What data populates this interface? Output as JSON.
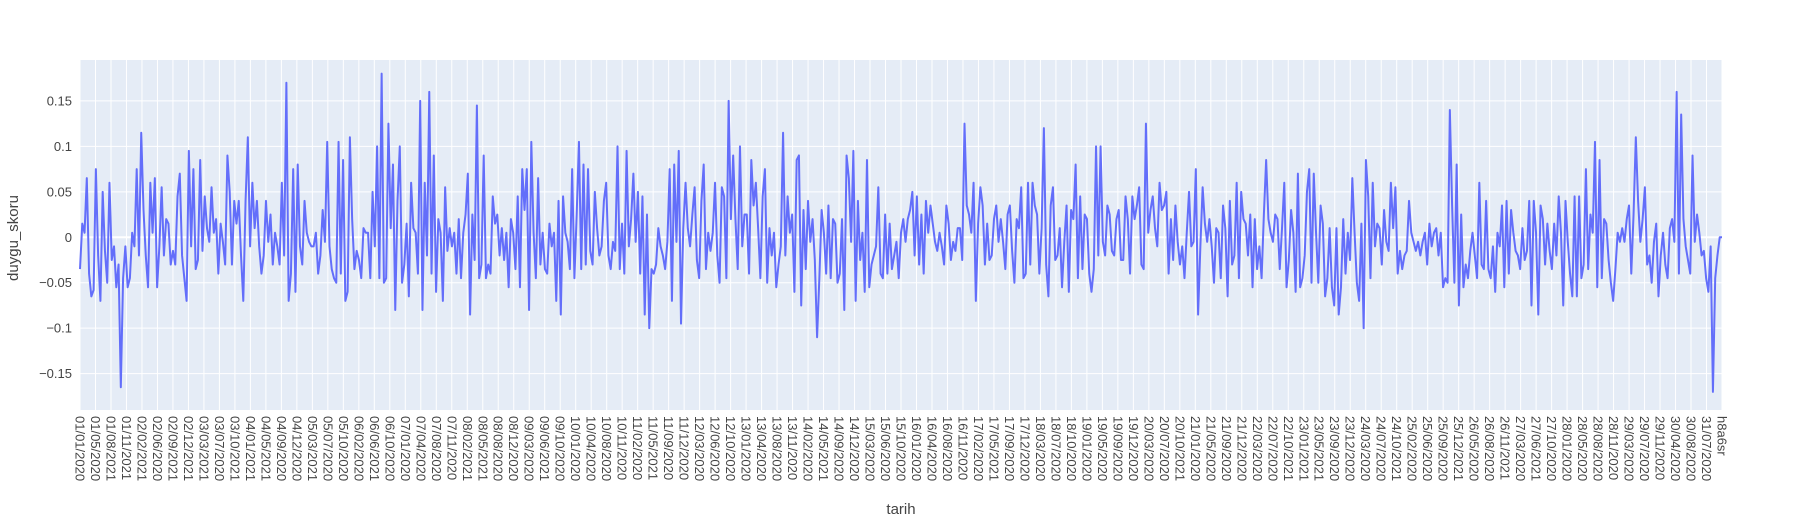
{
  "chart_data": {
    "type": "line",
    "xlabel": "tarih",
    "ylabel": "duygu_skoru",
    "line_color": "#636efa",
    "plot_bg": "#e5ecf6",
    "grid": true,
    "ylim": [
      -0.19,
      0.195
    ],
    "y_ticks": [
      -0.15,
      -0.1,
      -0.05,
      0,
      0.05,
      0.1,
      0.15
    ],
    "y_tick_labels": [
      "−0.15",
      "−0.1",
      "−0.05",
      "0",
      "0.05",
      "0.1",
      "0.15"
    ],
    "x_tick_labels": [
      "01/01/2020",
      "01/05/2020",
      "01/08/2021",
      "01/11/2021",
      "02/02/2021",
      "02/06/2020",
      "02/09/2021",
      "02/12/2021",
      "03/03/2021",
      "03/07/2020",
      "03/10/2021",
      "04/01/2021",
      "04/05/2021",
      "04/09/2020",
      "04/12/2020",
      "05/03/2021",
      "05/07/2020",
      "05/10/2020",
      "06/02/2020",
      "06/06/2021",
      "06/10/2020",
      "07/01/2020",
      "07/04/2020",
      "07/08/2020",
      "07/11/2020",
      "08/02/2021",
      "08/05/2021",
      "08/08/2020",
      "08/12/2020",
      "09/03/2020",
      "09/06/2021",
      "09/10/2020",
      "10/01/2020",
      "10/04/2020",
      "10/08/2020",
      "10/11/2020",
      "11/02/2020",
      "11/05/2021",
      "11/09/2020",
      "11/12/2020",
      "12/03/2020",
      "12/06/2020",
      "12/10/2020",
      "13/01/2020",
      "13/04/2020",
      "13/08/2020",
      "13/11/2020",
      "14/02/2020",
      "14/05/2021",
      "14/09/2020",
      "14/12/2020",
      "15/03/2020",
      "15/06/2020",
      "15/10/2020",
      "16/01/2020",
      "16/04/2020",
      "16/08/2020",
      "16/11/2020",
      "17/02/2020",
      "17/05/2021",
      "17/09/2020",
      "17/12/2020",
      "18/03/2020",
      "18/07/2020",
      "18/10/2020",
      "19/01/2020",
      "19/05/2020",
      "19/09/2020",
      "19/12/2020",
      "20/03/2020",
      "20/07/2020",
      "20/10/2021",
      "21/01/2020",
      "21/05/2020",
      "21/09/2020",
      "21/12/2020",
      "22/03/2020",
      "22/07/2020",
      "22/10/2021",
      "23/01/2021",
      "23/05/2021",
      "23/09/2020",
      "23/12/2020",
      "24/03/2020",
      "24/07/2020",
      "24/10/2021",
      "25/02/2020",
      "25/06/2020",
      "25/09/2020",
      "25/12/2021",
      "26/05/2020",
      "26/08/2020",
      "26/11/2021",
      "27/03/2020",
      "27/06/2021",
      "27/10/2020",
      "28/01/2020",
      "28/05/2020",
      "28/08/2020",
      "28/11/2020",
      "29/03/2020",
      "29/07/2020",
      "29/11/2020",
      "30/04/2020",
      "30/08/2020",
      "31/07/2020",
      "h8a6sr"
    ],
    "values": [
      -0.035,
      0.015,
      0.005,
      0.065,
      -0.04,
      -0.065,
      -0.058,
      0.075,
      -0.02,
      -0.07,
      0.05,
      -0.015,
      -0.05,
      0.06,
      -0.025,
      -0.01,
      -0.055,
      -0.03,
      -0.165,
      -0.045,
      -0.01,
      -0.055,
      -0.045,
      0.005,
      -0.01,
      0.075,
      -0.02,
      0.115,
      0.03,
      -0.02,
      -0.055,
      0.06,
      0.005,
      0.065,
      -0.055,
      -0.01,
      0.055,
      -0.02,
      0.02,
      0.015,
      -0.03,
      -0.015,
      -0.03,
      0.045,
      0.07,
      -0.02,
      -0.045,
      -0.07,
      0.095,
      -0.01,
      0.075,
      -0.035,
      -0.025,
      0.085,
      -0.015,
      0.045,
      0.01,
      -0.005,
      0.055,
      0.005,
      0.02,
      -0.04,
      0.015,
      -0.005,
      -0.03,
      0.09,
      0.05,
      -0.03,
      0.04,
      0.015,
      0.04,
      -0.02,
      -0.07,
      0.04,
      0.11,
      -0.01,
      0.06,
      0.01,
      0.04,
      -0.01,
      -0.04,
      -0.02,
      0.04,
      -0.005,
      0.025,
      -0.03,
      0.005,
      -0.01,
      -0.03,
      0.06,
      -0.02,
      0.17,
      -0.07,
      -0.04,
      0.075,
      -0.06,
      0.08,
      -0.01,
      -0.03,
      0.04,
      0.005,
      -0.005,
      -0.01,
      -0.01,
      0.005,
      -0.04,
      -0.02,
      0.03,
      -0.005,
      0.105,
      -0.01,
      -0.035,
      -0.045,
      -0.05,
      0.105,
      -0.04,
      0.085,
      -0.07,
      -0.06,
      0.11,
      0.02,
      -0.035,
      -0.015,
      -0.025,
      -0.045,
      0.01,
      0.005,
      0.005,
      -0.045,
      0.05,
      -0.01,
      0.1,
      -0.045,
      0.18,
      -0.05,
      -0.045,
      0.125,
      0.01,
      0.08,
      -0.08,
      0.04,
      0.1,
      -0.05,
      -0.03,
      0.015,
      -0.065,
      0.06,
      0.01,
      0.005,
      -0.04,
      0.15,
      -0.08,
      0.06,
      -0.02,
      0.16,
      -0.04,
      0.09,
      -0.06,
      0.02,
      0.005,
      -0.07,
      0.055,
      -0.015,
      0.01,
      -0.01,
      0.005,
      -0.04,
      0.02,
      -0.045,
      0.005,
      0.025,
      0.07,
      -0.085,
      0.025,
      -0.025,
      0.145,
      -0.045,
      -0.03,
      0.09,
      -0.045,
      -0.03,
      -0.04,
      0.045,
      0.015,
      0.025,
      -0.02,
      0.01,
      -0.025,
      0.005,
      -0.055,
      0.02,
      0.005,
      -0.035,
      0.045,
      -0.055,
      0.075,
      0.03,
      0.075,
      -0.08,
      0.105,
      0.005,
      -0.045,
      0.065,
      -0.03,
      0.005,
      -0.035,
      -0.04,
      0.015,
      -0.01,
      0.005,
      -0.07,
      0.04,
      -0.085,
      0.045,
      0.005,
      -0.005,
      -0.035,
      0.075,
      -0.045,
      0.025,
      0.105,
      -0.035,
      0.08,
      -0.03,
      0.075,
      -0.015,
      -0.03,
      0.05,
      0.01,
      -0.02,
      -0.01,
      0.04,
      0.06,
      -0.02,
      -0.035,
      -0.005,
      -0.015,
      0.1,
      -0.035,
      0.015,
      -0.04,
      0.095,
      -0.01,
      0.02,
      0.07,
      -0.005,
      0.05,
      -0.04,
      0.045,
      -0.085,
      0.025,
      -0.1,
      -0.035,
      -0.04,
      -0.03,
      0.01,
      -0.01,
      -0.02,
      -0.035,
      -0.005,
      0.075,
      -0.07,
      0.08,
      -0.005,
      0.095,
      -0.095,
      0.01,
      0.06,
      0.01,
      -0.01,
      0.025,
      0.055,
      -0.025,
      -0.045,
      0.04,
      0.08,
      -0.035,
      0.005,
      -0.015,
      0.005,
      0.06,
      -0.02,
      -0.05,
      0.055,
      0.045,
      -0.045,
      0.15,
      0.02,
      0.09,
      0.02,
      -0.035,
      0.1,
      -0.01,
      0.025,
      0.025,
      -0.04,
      0.085,
      0.035,
      0.06,
      0.01,
      -0.045,
      0.045,
      0.075,
      -0.05,
      0.01,
      -0.02,
      0.005,
      -0.055,
      -0.03,
      -0.01,
      0.115,
      -0.02,
      0.045,
      0.005,
      0.025,
      -0.06,
      0.085,
      0.09,
      -0.075,
      0.03,
      -0.035,
      0.04,
      -0.005,
      0.02,
      -0.025,
      -0.11,
      -0.045,
      0.03,
      0.005,
      -0.04,
      0.035,
      -0.045,
      0.02,
      0.015,
      -0.05,
      -0.04,
      0.02,
      -0.08,
      0.09,
      0.065,
      -0.005,
      0.095,
      -0.07,
      0.04,
      -0.025,
      0.005,
      -0.06,
      0.085,
      -0.055,
      -0.03,
      -0.02,
      -0.01,
      0.055,
      -0.04,
      -0.045,
      0.025,
      -0.04,
      0.015,
      -0.035,
      -0.02,
      -0.005,
      -0.045,
      0.005,
      0.02,
      -0.005,
      0.02,
      0.03,
      0.05,
      -0.02,
      0.045,
      -0.03,
      0.025,
      -0.04,
      0.04,
      0.005,
      0.035,
      0.015,
      -0.005,
      -0.015,
      0.005,
      -0.01,
      -0.03,
      0.035,
      0.015,
      -0.025,
      -0.005,
      -0.015,
      0.01,
      0.01,
      -0.025,
      0.125,
      0.035,
      0.025,
      0.005,
      0.06,
      -0.07,
      0.015,
      0.055,
      0.035,
      -0.03,
      0.015,
      -0.025,
      -0.02,
      0.02,
      0.035,
      -0.005,
      0.02,
      -0.005,
      -0.035,
      0.025,
      0.035,
      -0.015,
      -0.05,
      0.02,
      0.01,
      0.055,
      -0.045,
      -0.04,
      0.06,
      -0.03,
      0.06,
      0.035,
      0.025,
      -0.04,
      0.01,
      0.12,
      -0.03,
      -0.065,
      0.035,
      0.055,
      -0.025,
      -0.02,
      0.01,
      -0.055,
      -0.005,
      0.035,
      -0.06,
      0.03,
      0.02,
      0.08,
      -0.045,
      0.045,
      -0.035,
      0.025,
      0.02,
      -0.04,
      -0.06,
      -0.035,
      0.1,
      -0.02,
      0.1,
      -0.005,
      -0.02,
      0.035,
      0.025,
      -0.015,
      -0.02,
      0.02,
      0.03,
      -0.025,
      -0.025,
      0.045,
      0.02,
      -0.04,
      0.045,
      0.02,
      0.035,
      0.055,
      -0.03,
      -0.035,
      0.125,
      0.005,
      0.03,
      0.045,
      0.01,
      -0.01,
      0.06,
      0.03,
      0.035,
      0.05,
      -0.04,
      0.02,
      -0.025,
      0.035,
      -0.005,
      -0.03,
      -0.01,
      -0.045,
      0.005,
      0.05,
      -0.01,
      -0.005,
      0.075,
      -0.085,
      -0.01,
      0.055,
      0.015,
      -0.005,
      0.02,
      -0.01,
      -0.05,
      0.01,
      0.005,
      -0.045,
      0.035,
      0.01,
      -0.065,
      0.04,
      -0.03,
      -0.02,
      0.06,
      -0.045,
      0.05,
      0.02,
      0.015,
      -0.02,
      0.025,
      -0.055,
      0.02,
      -0.035,
      -0.01,
      -0.045,
      0.025,
      0.085,
      0.02,
      0.005,
      -0.005,
      0.025,
      0.02,
      -0.035,
      0.01,
      0.06,
      -0.055,
      -0.025,
      0.03,
      0.005,
      -0.06,
      0.07,
      -0.055,
      -0.045,
      -0.02,
      0.05,
      0.075,
      -0.05,
      0.07,
      0.005,
      -0.05,
      0.035,
      0.015,
      -0.065,
      -0.045,
      0.01,
      -0.055,
      -0.075,
      0.01,
      -0.085,
      -0.055,
      0.02,
      -0.04,
      0.005,
      -0.025,
      0.065,
      0.005,
      -0.05,
      -0.07,
      0.015,
      -0.1,
      0.085,
      0.045,
      -0.045,
      0.06,
      -0.01,
      0.015,
      0.01,
      -0.03,
      0.03,
      -0.005,
      -0.015,
      0.06,
      0.01,
      0.055,
      -0.04,
      -0.015,
      -0.035,
      -0.02,
      -0.015,
      0.04,
      0.005,
      -0.005,
      -0.015,
      -0.005,
      -0.02,
      -0.005,
      0.005,
      -0.03,
      0.015,
      -0.01,
      0.005,
      0.01,
      -0.02,
      0.005,
      -0.055,
      -0.045,
      -0.05,
      0.14,
      0.035,
      -0.05,
      0.08,
      -0.075,
      0.025,
      -0.055,
      -0.03,
      -0.045,
      -0.015,
      0.005,
      -0.02,
      -0.045,
      0.06,
      -0.03,
      -0.035,
      0.04,
      -0.035,
      -0.045,
      -0.01,
      -0.06,
      0.005,
      -0.01,
      0.035,
      -0.055,
      0.04,
      -0.04,
      0.03,
      0.005,
      -0.015,
      -0.02,
      -0.035,
      0.01,
      -0.025,
      -0.015,
      0.04,
      -0.075,
      0.04,
      0.005,
      -0.085,
      0.035,
      0.02,
      -0.03,
      0.015,
      -0.015,
      -0.035,
      0.015,
      -0.02,
      0.045,
      0.005,
      -0.075,
      0.04,
      -0.005,
      -0.04,
      -0.065,
      0.045,
      -0.065,
      0.045,
      -0.045,
      -0.03,
      0.075,
      -0.035,
      0.025,
      0.005,
      0.105,
      -0.055,
      0.085,
      -0.045,
      0.02,
      0.015,
      -0.025,
      -0.05,
      -0.07,
      -0.035,
      0.005,
      -0.005,
      0.01,
      -0.005,
      0.02,
      0.035,
      -0.04,
      0.025,
      0.11,
      0.04,
      -0.005,
      0.02,
      0.055,
      -0.03,
      -0.02,
      -0.05,
      -0.005,
      0.015,
      -0.065,
      -0.02,
      0.005,
      -0.03,
      -0.045,
      0.01,
      0.02,
      -0.005,
      0.16,
      -0.04,
      0.135,
      0.02,
      -0.01,
      -0.025,
      -0.04,
      0.09,
      -0.005,
      0.025,
      0.005,
      -0.02,
      -0.015,
      -0.045,
      -0.06,
      -0.01,
      -0.17,
      -0.045,
      -0.02,
      0.0,
      0.0
    ]
  }
}
